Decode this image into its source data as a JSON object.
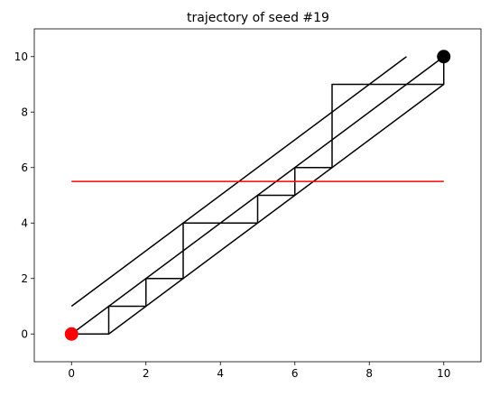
{
  "chart_data": {
    "type": "line",
    "title": "trajectory of seed #19",
    "xlabel": "",
    "ylabel": "",
    "xlim": [
      -1,
      11
    ],
    "ylim": [
      -1,
      11
    ],
    "xticks": [
      0,
      2,
      4,
      6,
      8,
      10
    ],
    "yticks": [
      0,
      2,
      4,
      6,
      8,
      10
    ],
    "grid": false,
    "legend": "none",
    "series": [
      {
        "color": "#000000",
        "x": [
          0,
          1,
          1,
          2,
          2,
          3,
          3,
          5,
          5,
          6,
          6,
          7,
          7,
          10,
          10
        ],
        "y": [
          0,
          0,
          1,
          1,
          2,
          2,
          4,
          4,
          5,
          5,
          6,
          6,
          9,
          9,
          10
        ]
      },
      {
        "color": "#000000",
        "x": [
          1,
          10
        ],
        "y": [
          0,
          9
        ]
      },
      {
        "color": "#000000",
        "x": [
          0,
          10
        ],
        "y": [
          0,
          10
        ]
      },
      {
        "color": "#000000",
        "x": [
          0,
          9
        ],
        "y": [
          1,
          10
        ]
      },
      {
        "color": "#ff0000",
        "x": [
          0,
          10
        ],
        "y": [
          5.5,
          5.5
        ]
      }
    ],
    "markers": [
      {
        "x": 0,
        "y": 0,
        "color": "#ff0000"
      },
      {
        "x": 10,
        "y": 10,
        "color": "#000000"
      }
    ]
  }
}
